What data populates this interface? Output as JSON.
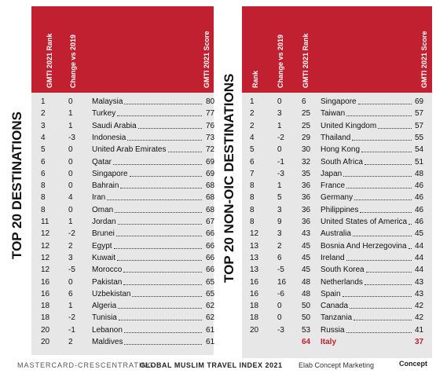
{
  "left": {
    "side_label": "TOP 20 DESTINATIONS",
    "headers": [
      "GMTI 2021 Rank",
      "Change vs 2019",
      "GMTI 2021 Score"
    ],
    "rows": [
      [
        1,
        0,
        "Malaysia",
        80
      ],
      [
        2,
        1,
        "Turkey",
        77
      ],
      [
        3,
        1,
        "Saudi Arabia",
        76
      ],
      [
        4,
        -3,
        "Indonesia",
        73
      ],
      [
        5,
        0,
        "United Arab Emirates",
        72
      ],
      [
        6,
        0,
        "Qatar",
        69
      ],
      [
        6,
        0,
        "Singapore",
        69
      ],
      [
        8,
        0,
        "Bahrain",
        68
      ],
      [
        8,
        4,
        "Iran",
        68
      ],
      [
        8,
        0,
        "Oman",
        68
      ],
      [
        11,
        1,
        "Jordan",
        67
      ],
      [
        12,
        -2,
        "Brunei",
        66
      ],
      [
        12,
        2,
        "Egypt",
        66
      ],
      [
        12,
        3,
        "Kuwait",
        66
      ],
      [
        12,
        -5,
        "Morocco",
        66
      ],
      [
        16,
        0,
        "Pakistan",
        65
      ],
      [
        16,
        6,
        "Uzbekistan",
        65
      ],
      [
        18,
        1,
        "Algeria",
        62
      ],
      [
        18,
        -2,
        "Tunisia",
        62
      ],
      [
        20,
        -1,
        "Lebanon",
        61
      ],
      [
        20,
        2,
        "Maldives",
        61
      ]
    ]
  },
  "right": {
    "side_label": "TOP 20 NON-OIC DESTINATIONS",
    "headers": [
      "Rank",
      "Change vs 2019",
      "GMTI 2021 Rank",
      "GMTI 2021 Score"
    ],
    "rows": [
      [
        1,
        0,
        6,
        "Singapore",
        69
      ],
      [
        2,
        3,
        25,
        "Taiwan",
        57
      ],
      [
        2,
        1,
        25,
        "United Kingdom",
        57
      ],
      [
        4,
        -2,
        29,
        "Thailand",
        55
      ],
      [
        5,
        0,
        30,
        "Hong Kong",
        54
      ],
      [
        6,
        -1,
        32,
        "South Africa",
        51
      ],
      [
        7,
        -3,
        35,
        "Japan",
        48
      ],
      [
        8,
        1,
        36,
        "France",
        46
      ],
      [
        8,
        5,
        36,
        "Germany",
        46
      ],
      [
        8,
        3,
        36,
        "Philippines",
        46
      ],
      [
        8,
        9,
        36,
        "United States of America",
        46
      ],
      [
        12,
        3,
        43,
        "Australia",
        45
      ],
      [
        13,
        2,
        45,
        "Bosnia And Herzegovina",
        44
      ],
      [
        13,
        6,
        45,
        "Ireland",
        44
      ],
      [
        13,
        -5,
        45,
        "South Korea",
        44
      ],
      [
        16,
        16,
        48,
        "Netherlands",
        43
      ],
      [
        16,
        -6,
        48,
        "Spain",
        43
      ],
      [
        18,
        0,
        50,
        "Canada",
        42
      ],
      [
        18,
        0,
        50,
        "Tanzania",
        42
      ],
      [
        20,
        -3,
        53,
        "Russia",
        41
      ]
    ],
    "highlight": [
      64,
      "Italy",
      37
    ]
  },
  "footer": {
    "source": "MASTERCARD-CRESCENTRATING",
    "title": "GLOBAL MUSLIM TRAVEL INDEX 2021",
    "credit": "Elab Concept Marketing",
    "logo": "Concept"
  }
}
